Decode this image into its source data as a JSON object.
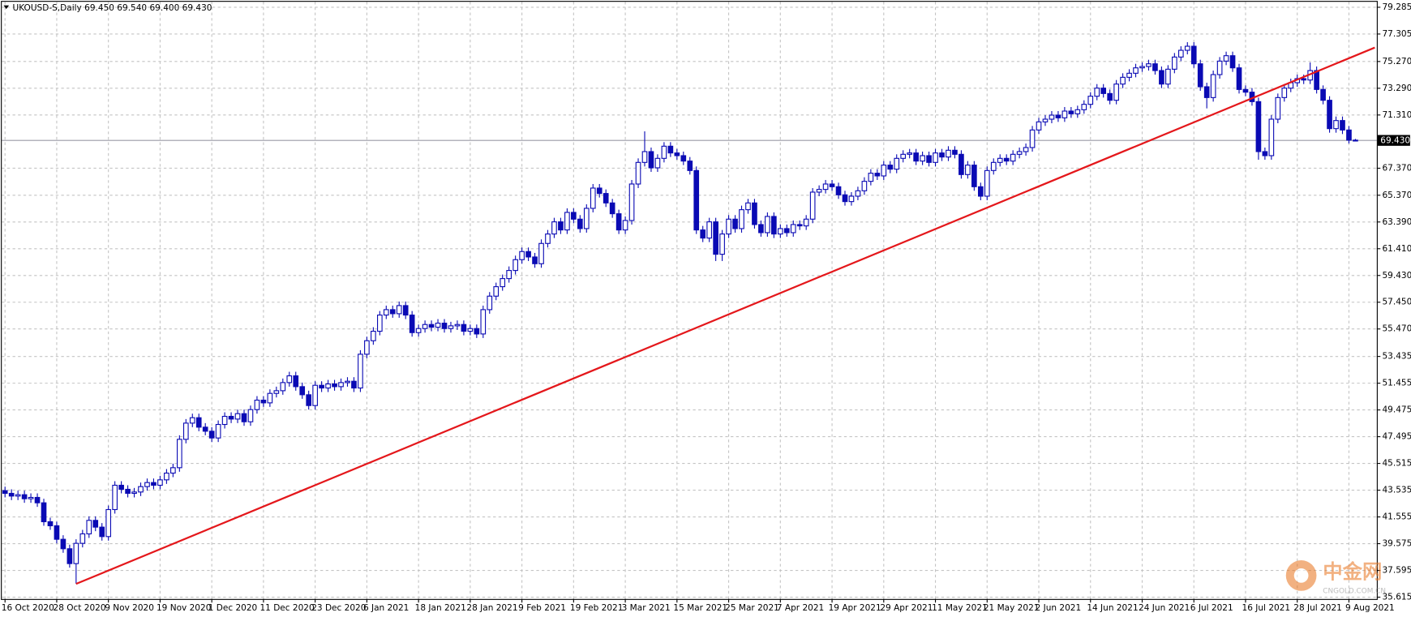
{
  "chart_data": {
    "type": "candlestick",
    "header": "UKOUSD-S,Daily  69.450 69.540 69.400 69.430",
    "categories": [
      "16 Oct 2020",
      null,
      null,
      null,
      null,
      null,
      null,
      null,
      "28 Oct 2020",
      null,
      null,
      null,
      null,
      null,
      null,
      null,
      "9 Nov 2020",
      null,
      null,
      null,
      null,
      null,
      null,
      null,
      "19 Nov 2020",
      null,
      null,
      null,
      null,
      null,
      null,
      null,
      "1 Dec 2020",
      null,
      null,
      null,
      null,
      null,
      null,
      null,
      "11 Dec 2020",
      null,
      null,
      null,
      null,
      null,
      null,
      null,
      "23 Dec 2020",
      null,
      null,
      null,
      null,
      null,
      null,
      null,
      "6 Jan 2021",
      null,
      null,
      null,
      null,
      null,
      null,
      null,
      "18 Jan 2021",
      null,
      null,
      null,
      null,
      null,
      null,
      null,
      "28 Jan 2021",
      null,
      null,
      null,
      null,
      null,
      null,
      null,
      "9 Feb 2021",
      null,
      null,
      null,
      null,
      null,
      null,
      null,
      "19 Feb 2021",
      null,
      null,
      null,
      null,
      null,
      null,
      null,
      "3 Mar 2021",
      null,
      null,
      null,
      null,
      null,
      null,
      null,
      "15 Mar 2021",
      null,
      null,
      null,
      null,
      null,
      null,
      null,
      "25 Mar 2021",
      null,
      null,
      null,
      null,
      null,
      null,
      null,
      "7 Apr 2021",
      null,
      null,
      null,
      null,
      null,
      null,
      null,
      "19 Apr 2021",
      null,
      null,
      null,
      null,
      null,
      null,
      null,
      "29 Apr 2021",
      null,
      null,
      null,
      null,
      null,
      null,
      null,
      "11 May 2021",
      null,
      null,
      null,
      null,
      null,
      null,
      null,
      "21 May 2021",
      null,
      null,
      null,
      null,
      null,
      null,
      null,
      "2 Jun 2021",
      null,
      null,
      null,
      null,
      null,
      null,
      null,
      "14 Jun 2021",
      null,
      null,
      null,
      null,
      null,
      null,
      null,
      "24 Jun 2021",
      null,
      null,
      null,
      null,
      null,
      null,
      null,
      "6 Jul 2021",
      null,
      null,
      null,
      null,
      null,
      null,
      null,
      "16 Jul 2021",
      null,
      null,
      null,
      null,
      null,
      null,
      null,
      "28 Jul 2021",
      null,
      null,
      null,
      null,
      null,
      null,
      null,
      "9 Aug 2021",
      null
    ],
    "open": [
      43.5,
      43.3,
      43.1,
      43.2,
      42.9,
      43.0,
      42.6,
      41.2,
      40.9,
      39.9,
      39.2,
      38.1,
      39.6,
      40.3,
      41.3,
      40.8,
      40.1,
      42.1,
      43.9,
      43.6,
      43.3,
      43.4,
      43.8,
      44.1,
      43.9,
      44.3,
      44.8,
      45.2,
      47.3,
      48.5,
      48.9,
      48.2,
      47.9,
      47.4,
      48.4,
      49.0,
      48.8,
      49.2,
      48.6,
      49.5,
      50.2,
      50.0,
      50.7,
      50.9,
      51.5,
      52.0,
      51.2,
      50.6,
      49.8,
      51.3,
      51.1,
      51.4,
      51.2,
      51.5,
      51.6,
      51.1,
      53.6,
      54.6,
      55.3,
      56.5,
      56.9,
      56.6,
      57.2,
      56.5,
      55.2,
      55.5,
      55.8,
      55.6,
      55.9,
      55.5,
      55.7,
      55.8,
      55.3,
      55.5,
      55.1,
      56.9,
      57.9,
      58.6,
      59.2,
      59.8,
      60.6,
      61.2,
      60.8,
      60.3,
      61.8,
      62.5,
      63.4,
      62.8,
      64.1,
      63.6,
      62.9,
      64.4,
      65.9,
      65.5,
      64.8,
      64.0,
      62.8,
      63.5,
      66.2,
      67.8,
      68.6,
      67.4,
      68.1,
      69.0,
      68.5,
      68.3,
      67.9,
      67.2,
      62.8,
      62.2,
      63.4,
      61.0,
      62.5,
      63.6,
      62.9,
      64.3,
      64.8,
      63.2,
      62.6,
      63.8,
      62.5,
      62.9,
      62.6,
      63.2,
      63.1,
      63.6,
      65.6,
      65.8,
      66.2,
      66.0,
      65.4,
      64.9,
      65.3,
      65.7,
      66.4,
      67.0,
      66.8,
      67.6,
      67.3,
      68.1,
      68.4,
      68.5,
      67.9,
      68.3,
      67.8,
      68.5,
      68.2,
      68.7,
      68.4,
      66.9,
      67.6,
      66.0,
      65.3,
      67.2,
      67.8,
      68.1,
      67.9,
      68.4,
      68.6,
      68.9,
      70.2,
      70.8,
      71.0,
      71.3,
      71.1,
      71.6,
      71.4,
      71.7,
      72.1,
      72.7,
      73.3,
      72.9,
      72.4,
      73.6,
      74.1,
      74.4,
      74.8,
      74.9,
      75.1,
      74.6,
      73.6,
      74.7,
      75.6,
      76.1,
      76.4,
      75.1,
      73.4,
      72.6,
      74.3,
      75.3,
      75.7,
      74.8,
      73.2,
      73.0,
      72.3,
      68.6,
      68.3,
      71.0,
      72.6,
      73.3,
      73.7,
      74.0,
      73.9,
      74.6,
      73.2,
      72.4,
      70.3,
      70.9,
      70.2,
      69.45
    ],
    "high": [
      43.8,
      43.6,
      43.5,
      43.5,
      43.3,
      43.3,
      42.9,
      41.5,
      41.2,
      40.2,
      39.5,
      39.9,
      40.6,
      41.6,
      41.6,
      41.1,
      42.4,
      44.2,
      44.2,
      43.9,
      43.7,
      44.1,
      44.4,
      44.4,
      44.6,
      45.1,
      45.5,
      47.6,
      48.8,
      49.2,
      49.2,
      48.5,
      48.2,
      48.7,
      49.3,
      49.3,
      49.5,
      49.5,
      49.8,
      50.5,
      50.5,
      51.0,
      51.2,
      51.8,
      52.3,
      52.3,
      51.5,
      50.9,
      51.6,
      51.6,
      51.7,
      51.7,
      51.8,
      51.9,
      51.9,
      53.9,
      54.9,
      55.6,
      56.8,
      57.2,
      57.2,
      57.5,
      57.5,
      56.8,
      55.8,
      56.1,
      56.1,
      56.2,
      56.2,
      56.0,
      56.1,
      56.1,
      55.8,
      55.8,
      57.2,
      58.2,
      58.9,
      59.5,
      60.1,
      60.9,
      61.5,
      61.5,
      61.1,
      62.1,
      62.8,
      63.7,
      63.7,
      64.4,
      64.4,
      63.9,
      64.7,
      66.2,
      66.2,
      65.8,
      65.1,
      64.3,
      63.8,
      66.5,
      68.1,
      70.1,
      68.9,
      68.4,
      69.3,
      69.3,
      68.8,
      68.6,
      68.2,
      67.5,
      63.1,
      63.7,
      63.7,
      62.8,
      63.9,
      63.9,
      64.6,
      65.1,
      65.1,
      63.5,
      64.1,
      64.1,
      63.2,
      63.2,
      63.5,
      63.5,
      63.9,
      65.9,
      66.1,
      66.5,
      66.5,
      66.3,
      65.7,
      65.6,
      66.0,
      66.7,
      67.3,
      67.3,
      67.9,
      67.9,
      68.4,
      68.7,
      68.8,
      68.8,
      68.6,
      68.6,
      68.8,
      68.8,
      69.0,
      69.0,
      68.7,
      67.9,
      67.9,
      66.3,
      67.5,
      68.1,
      68.4,
      68.4,
      68.7,
      68.9,
      69.2,
      70.5,
      71.1,
      71.3,
      71.6,
      71.6,
      71.9,
      71.9,
      72.0,
      72.4,
      73.0,
      73.6,
      73.6,
      73.2,
      73.9,
      74.4,
      74.7,
      75.1,
      75.2,
      75.4,
      75.4,
      74.9,
      75.0,
      75.9,
      76.4,
      76.7,
      76.7,
      75.4,
      73.7,
      74.6,
      75.6,
      76.0,
      76.0,
      75.1,
      73.5,
      73.3,
      72.6,
      68.9,
      71.3,
      72.9,
      73.6,
      74.0,
      74.3,
      74.3,
      75.2,
      74.9,
      73.5,
      72.7,
      71.2,
      71.2,
      70.5,
      69.54
    ],
    "low": [
      43.0,
      42.8,
      42.8,
      42.6,
      42.6,
      42.3,
      40.9,
      40.6,
      39.6,
      38.9,
      37.8,
      36.6,
      39.3,
      40.0,
      40.5,
      39.8,
      39.8,
      41.8,
      43.3,
      43.0,
      43.0,
      43.1,
      43.5,
      43.6,
      43.6,
      44.0,
      44.5,
      44.9,
      47.0,
      48.2,
      47.9,
      47.6,
      47.1,
      47.1,
      48.1,
      48.5,
      48.5,
      48.3,
      48.3,
      49.2,
      49.7,
      49.7,
      50.4,
      50.6,
      51.2,
      50.9,
      50.3,
      49.5,
      49.5,
      50.8,
      50.8,
      50.9,
      50.9,
      51.2,
      50.8,
      50.8,
      53.3,
      54.3,
      55.0,
      56.2,
      56.3,
      56.3,
      56.2,
      54.9,
      54.9,
      55.2,
      55.3,
      55.3,
      55.2,
      55.2,
      55.4,
      55.0,
      55.0,
      54.8,
      54.8,
      56.6,
      57.6,
      58.3,
      58.9,
      59.5,
      60.3,
      60.5,
      60.0,
      60.0,
      61.5,
      62.2,
      62.5,
      62.5,
      63.3,
      62.6,
      62.6,
      64.1,
      65.2,
      64.5,
      63.7,
      62.5,
      62.5,
      63.2,
      65.9,
      67.5,
      67.1,
      67.1,
      67.8,
      68.2,
      68.0,
      67.6,
      66.9,
      62.5,
      61.9,
      61.9,
      60.5,
      60.5,
      62.2,
      62.6,
      62.6,
      64.0,
      62.9,
      62.3,
      62.3,
      62.2,
      62.2,
      62.3,
      62.3,
      62.8,
      62.8,
      63.3,
      65.3,
      65.5,
      65.7,
      65.1,
      64.6,
      64.6,
      65.0,
      65.4,
      66.1,
      66.5,
      66.5,
      67.0,
      67.0,
      67.8,
      68.1,
      67.6,
      67.6,
      67.5,
      67.5,
      67.9,
      67.9,
      68.1,
      66.6,
      66.6,
      65.7,
      65.0,
      65.0,
      66.9,
      67.5,
      67.6,
      67.6,
      68.1,
      68.3,
      68.6,
      69.9,
      70.5,
      70.7,
      70.8,
      70.8,
      71.1,
      71.1,
      71.4,
      71.8,
      72.4,
      72.6,
      72.1,
      72.1,
      73.3,
      73.8,
      74.1,
      74.5,
      74.6,
      74.3,
      73.3,
      73.3,
      74.4,
      75.3,
      75.8,
      74.8,
      73.1,
      71.8,
      72.3,
      74.0,
      75.0,
      74.5,
      72.9,
      72.7,
      72.0,
      68.0,
      68.0,
      68.0,
      70.7,
      72.3,
      73.0,
      73.4,
      73.6,
      73.6,
      72.9,
      72.1,
      70.0,
      70.0,
      69.9,
      69.2,
      69.4
    ],
    "close": [
      43.3,
      43.1,
      43.2,
      42.9,
      43.0,
      42.6,
      41.2,
      40.9,
      39.9,
      39.2,
      38.1,
      39.6,
      40.3,
      41.3,
      40.8,
      40.1,
      42.1,
      43.9,
      43.6,
      43.3,
      43.4,
      43.8,
      44.1,
      43.9,
      44.3,
      44.8,
      45.2,
      47.3,
      48.5,
      48.9,
      48.2,
      47.9,
      47.4,
      48.4,
      49.0,
      48.8,
      49.2,
      48.6,
      49.5,
      50.2,
      50.0,
      50.7,
      50.9,
      51.5,
      52.0,
      51.2,
      50.6,
      49.8,
      51.3,
      51.1,
      51.4,
      51.2,
      51.5,
      51.6,
      51.1,
      53.6,
      54.6,
      55.3,
      56.5,
      56.9,
      56.6,
      57.2,
      56.5,
      55.2,
      55.5,
      55.8,
      55.6,
      55.9,
      55.5,
      55.7,
      55.8,
      55.3,
      55.5,
      55.1,
      56.9,
      57.9,
      58.6,
      59.2,
      59.8,
      60.6,
      61.2,
      60.8,
      60.3,
      61.8,
      62.5,
      63.4,
      62.8,
      64.1,
      63.6,
      62.9,
      64.4,
      65.9,
      65.5,
      64.8,
      64.0,
      62.8,
      63.5,
      66.2,
      67.8,
      68.6,
      67.4,
      68.1,
      69.0,
      68.5,
      68.3,
      67.9,
      67.2,
      62.8,
      62.2,
      63.4,
      61.0,
      62.5,
      63.6,
      62.9,
      64.3,
      64.8,
      63.2,
      62.6,
      63.8,
      62.5,
      62.9,
      62.6,
      63.2,
      63.1,
      63.6,
      65.6,
      65.8,
      66.2,
      66.0,
      65.4,
      64.9,
      65.3,
      65.7,
      66.4,
      67.0,
      66.8,
      67.6,
      67.3,
      68.1,
      68.4,
      68.5,
      67.9,
      68.3,
      67.8,
      68.5,
      68.2,
      68.7,
      68.4,
      66.9,
      67.6,
      66.0,
      65.3,
      67.2,
      67.8,
      68.1,
      67.9,
      68.4,
      68.6,
      68.9,
      70.2,
      70.8,
      71.0,
      71.3,
      71.1,
      71.6,
      71.4,
      71.7,
      72.1,
      72.7,
      73.3,
      72.9,
      72.4,
      73.6,
      74.1,
      74.4,
      74.8,
      74.9,
      75.1,
      74.6,
      73.6,
      74.7,
      75.6,
      76.1,
      76.4,
      75.1,
      73.4,
      72.6,
      74.3,
      75.3,
      75.7,
      74.8,
      73.2,
      73.0,
      72.3,
      68.6,
      68.3,
      71.0,
      72.6,
      73.3,
      73.7,
      74.0,
      73.9,
      74.6,
      73.2,
      72.4,
      70.3,
      70.9,
      70.2,
      69.45,
      69.43
    ],
    "color": "#0a0ab4",
    "up_color": "#ffffff",
    "ylim": [
      35.48,
      79.69
    ],
    "yticks": [
      79.285,
      77.305,
      {
        "value": 75.27,
        "label": "75.270"
      },
      {
        "value": 73.29,
        "label": "73.290"
      },
      {
        "value": 71.31,
        "label": "71.310"
      },
      {
        "value": 67.37,
        "label": "67.370"
      },
      {
        "value": 65.37,
        "label": "65.370"
      },
      {
        "value": 63.39,
        "label": "63.390"
      },
      {
        "value": 61.41,
        "label": "61.410"
      },
      {
        "value": 59.43,
        "label": "59.430"
      },
      {
        "value": 57.45,
        "label": "57.450"
      },
      {
        "value": 55.47,
        "label": "55.470"
      },
      53.435,
      51.455,
      49.475,
      47.495,
      45.515,
      43.535,
      41.555,
      39.575,
      37.595,
      35.615
    ],
    "grid": true,
    "grid_color": "#c4c4c4",
    "current_price": {
      "value": 69.43,
      "label": "69.430",
      "color": "#9a9aa6"
    },
    "trendline": {
      "color": "#e4171b",
      "x": [
        11,
        212
      ],
      "y": [
        36.6,
        76.3
      ]
    },
    "watermark": {
      "title": "中金网",
      "subtitle": "CNGOLD.COM.CN"
    }
  }
}
